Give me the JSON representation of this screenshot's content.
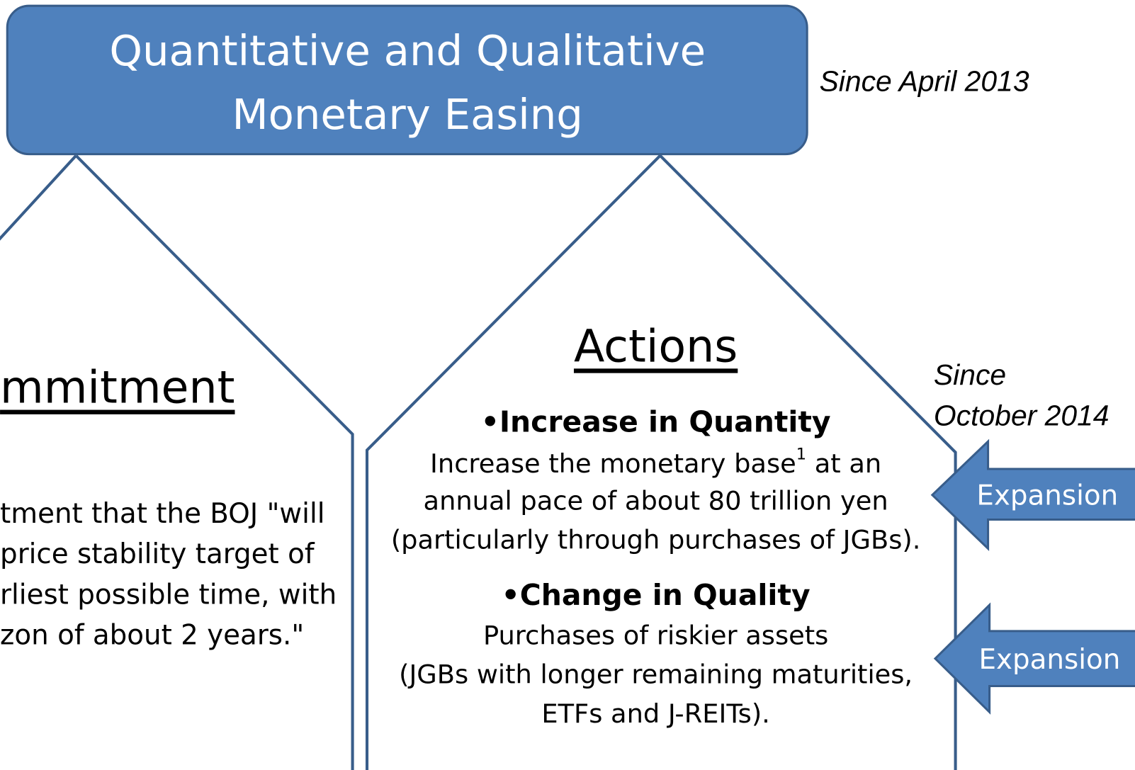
{
  "header": {
    "title_lines": [
      "Quantitative and Qualitative",
      "Monetary Easing"
    ],
    "since": "Since April 2013"
  },
  "left_panel": {
    "heading": "mmitment",
    "lines": [
      "tment that the BOJ \"will",
      " price stability target of",
      "rliest possible time, with",
      "zon of about 2 years.\""
    ]
  },
  "right_panel": {
    "heading": "Actions",
    "items": [
      {
        "heading": "•Increase in Quantity",
        "first_line": {
          "text": "Increase the monetary base",
          "sup": "1",
          "rest": " at an"
        },
        "lines": [
          "annual pace of about 80 trillion yen",
          "(particularly through purchases of JGBs)."
        ]
      },
      {
        "heading": "•Change in Quality",
        "lines": [
          "Purchases of riskier assets",
          "(JGBs with longer remaining maturities,",
          "ETFs and J-REITs)."
        ]
      }
    ]
  },
  "since_note": [
    "Since",
    "October 2014"
  ],
  "arrows": [
    "Expansion",
    "Expansion"
  ]
}
